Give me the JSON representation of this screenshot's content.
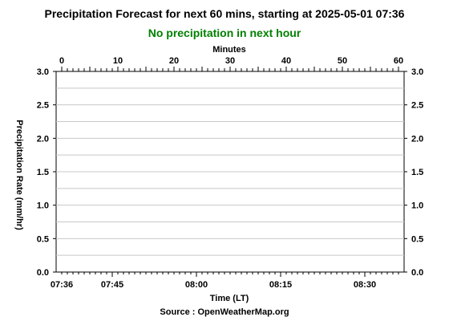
{
  "chart_data": {
    "type": "line",
    "title": "Precipitation Forecast for next 60 mins, starting at 2025-05-01 07:36",
    "subtitle": "No precipitation in next hour",
    "subtitle_color": "#008000",
    "top_xlabel": "Minutes",
    "top_x_ticks": [
      "0",
      "10",
      "20",
      "30",
      "40",
      "50",
      "60"
    ],
    "xlabel": "Time (LT)",
    "x_ticks": [
      "07:36",
      "07:45",
      "08:00",
      "08:15",
      "08:30"
    ],
    "ylabel": "Precipitation Rate (mm/hr)",
    "y_ticks": [
      "0.0",
      "0.5",
      "1.0",
      "1.5",
      "2.0",
      "2.5",
      "3.0"
    ],
    "ylim": [
      0,
      3
    ],
    "xlim_minutes": [
      0,
      60
    ],
    "grid": true,
    "series": []
  },
  "footer": {
    "source": "Source : OpenWeatherMap.org"
  }
}
